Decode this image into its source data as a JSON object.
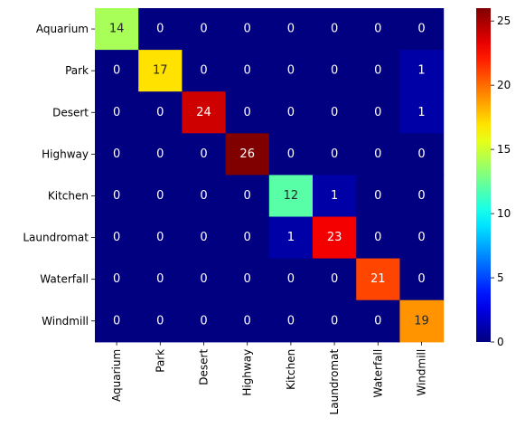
{
  "chart_data": {
    "type": "heatmap",
    "title": "",
    "xlabel": "",
    "ylabel": "",
    "rows": [
      "Aquarium",
      "Park",
      "Desert",
      "Highway",
      "Kitchen",
      "Laundromat",
      "Waterfall",
      "Windmill"
    ],
    "columns": [
      "Aquarium",
      "Park",
      "Desert",
      "Highway",
      "Kitchen",
      "Laundromat",
      "Waterfall",
      "Windmill"
    ],
    "values": [
      [
        14,
        0,
        0,
        0,
        0,
        0,
        0,
        0
      ],
      [
        0,
        17,
        0,
        0,
        0,
        0,
        0,
        1
      ],
      [
        0,
        0,
        24,
        0,
        0,
        0,
        0,
        1
      ],
      [
        0,
        0,
        0,
        26,
        0,
        0,
        0,
        0
      ],
      [
        0,
        0,
        0,
        0,
        12,
        1,
        0,
        0
      ],
      [
        0,
        0,
        0,
        0,
        1,
        23,
        0,
        0
      ],
      [
        0,
        0,
        0,
        0,
        0,
        0,
        21,
        0
      ],
      [
        0,
        0,
        0,
        0,
        0,
        0,
        0,
        19
      ]
    ],
    "colormap": "jet",
    "colorbar": {
      "range": [
        0,
        26
      ],
      "ticks": [
        0,
        5,
        10,
        15,
        20,
        25
      ]
    },
    "annotations": true,
    "grid": false,
    "legend": "colorbar-right"
  }
}
